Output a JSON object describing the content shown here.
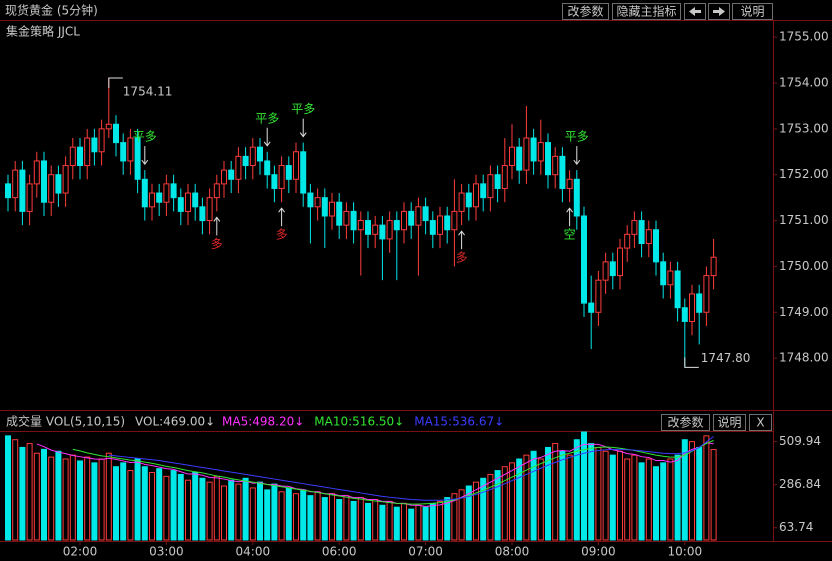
{
  "header": {
    "title": "现货黄金 (5分钟)",
    "buttons": [
      "改参数",
      "隐藏主指标",
      "说明"
    ]
  },
  "chart_data": [
    {
      "type": "candlestick",
      "title": "集金策略 JJCL",
      "up_color": "#ff3c3c",
      "down_color": "#00e8e8",
      "ylim": [
        1747,
        1755.33
      ],
      "yticks": [
        {
          "value": 1755,
          "label": "1755.00"
        },
        {
          "value": 1754,
          "label": "1754.00"
        },
        {
          "value": 1753,
          "label": "1753.00"
        },
        {
          "value": 1752,
          "label": "1752.00"
        },
        {
          "value": 1751,
          "label": "1751.00"
        },
        {
          "value": 1750,
          "label": "1750.00"
        },
        {
          "value": 1749,
          "label": "1749.00"
        },
        {
          "value": 1748,
          "label": "1748.00"
        }
      ],
      "candles": [
        [
          1751.8,
          1752.0,
          1751.2,
          1751.5
        ],
        [
          1751.5,
          1752.3,
          1751.2,
          1752.1
        ],
        [
          1752.1,
          1752.3,
          1750.9,
          1751.2
        ],
        [
          1751.2,
          1752.0,
          1750.9,
          1751.8
        ],
        [
          1751.8,
          1752.5,
          1751.5,
          1752.3
        ],
        [
          1752.3,
          1752.5,
          1751.1,
          1751.4
        ],
        [
          1751.4,
          1752.2,
          1751.1,
          1752.0
        ],
        [
          1752.0,
          1752.2,
          1751.3,
          1751.6
        ],
        [
          1751.6,
          1752.4,
          1751.3,
          1752.2
        ],
        [
          1752.2,
          1752.8,
          1751.9,
          1752.6
        ],
        [
          1752.6,
          1752.8,
          1751.9,
          1752.2
        ],
        [
          1752.2,
          1753.0,
          1751.9,
          1752.8
        ],
        [
          1752.8,
          1753.0,
          1752.2,
          1752.5
        ],
        [
          1752.5,
          1753.2,
          1752.2,
          1753.0
        ],
        [
          1753.0,
          1754.11,
          1752.8,
          1753.1
        ],
        [
          1753.1,
          1753.3,
          1752.4,
          1752.7
        ],
        [
          1752.7,
          1752.9,
          1752.0,
          1752.3
        ],
        [
          1752.3,
          1753.0,
          1752.0,
          1752.8
        ],
        [
          1752.8,
          1753.0,
          1751.6,
          1751.9
        ],
        [
          1751.9,
          1752.1,
          1751.0,
          1751.3
        ],
        [
          1751.3,
          1751.8,
          1751.0,
          1751.6
        ],
        [
          1751.6,
          1751.8,
          1751.1,
          1751.4
        ],
        [
          1751.4,
          1752.0,
          1751.1,
          1751.8
        ],
        [
          1751.8,
          1752.0,
          1751.2,
          1751.5
        ],
        [
          1751.5,
          1751.7,
          1750.9,
          1751.2
        ],
        [
          1751.2,
          1751.8,
          1750.9,
          1751.6
        ],
        [
          1751.6,
          1751.8,
          1751.0,
          1751.3
        ],
        [
          1751.3,
          1751.5,
          1750.7,
          1751.0
        ],
        [
          1751.0,
          1751.7,
          1750.7,
          1751.5
        ],
        [
          1751.5,
          1752.0,
          1751.2,
          1751.8
        ],
        [
          1751.8,
          1752.3,
          1751.5,
          1752.1
        ],
        [
          1752.1,
          1752.3,
          1751.6,
          1751.9
        ],
        [
          1751.9,
          1752.6,
          1751.6,
          1752.4
        ],
        [
          1752.4,
          1752.6,
          1751.9,
          1752.2
        ],
        [
          1752.2,
          1752.8,
          1751.9,
          1752.6
        ],
        [
          1752.6,
          1752.8,
          1752.0,
          1752.3
        ],
        [
          1752.3,
          1752.5,
          1751.7,
          1752.0
        ],
        [
          1752.0,
          1752.2,
          1751.4,
          1751.7
        ],
        [
          1751.7,
          1752.4,
          1751.4,
          1752.2
        ],
        [
          1752.2,
          1752.4,
          1751.6,
          1751.9
        ],
        [
          1751.9,
          1752.7,
          1751.6,
          1752.5
        ],
        [
          1752.5,
          1752.7,
          1751.3,
          1751.6
        ],
        [
          1751.6,
          1751.8,
          1750.5,
          1751.3
        ],
        [
          1751.3,
          1751.7,
          1751.0,
          1751.5
        ],
        [
          1751.5,
          1751.7,
          1750.4,
          1751.1
        ],
        [
          1751.1,
          1751.6,
          1750.8,
          1751.4
        ],
        [
          1751.4,
          1751.6,
          1750.6,
          1750.9
        ],
        [
          1750.9,
          1751.4,
          1750.6,
          1751.2
        ],
        [
          1751.2,
          1751.4,
          1750.5,
          1750.8
        ],
        [
          1750.8,
          1751.2,
          1749.8,
          1751.0
        ],
        [
          1751.0,
          1751.2,
          1750.4,
          1750.7
        ],
        [
          1750.7,
          1751.1,
          1750.4,
          1750.9
        ],
        [
          1750.9,
          1751.1,
          1749.7,
          1750.6
        ],
        [
          1750.6,
          1751.2,
          1750.3,
          1751.0
        ],
        [
          1751.0,
          1751.2,
          1749.7,
          1750.8
        ],
        [
          1750.8,
          1751.4,
          1750.5,
          1751.2
        ],
        [
          1751.2,
          1751.4,
          1750.6,
          1750.9
        ],
        [
          1750.9,
          1751.5,
          1749.8,
          1751.3
        ],
        [
          1751.3,
          1751.5,
          1750.7,
          1751.0
        ],
        [
          1751.0,
          1751.2,
          1750.4,
          1750.7
        ],
        [
          1750.7,
          1751.3,
          1750.4,
          1751.1
        ],
        [
          1751.1,
          1751.3,
          1750.5,
          1750.8
        ],
        [
          1750.8,
          1751.9,
          1750.0,
          1751.2
        ],
        [
          1751.2,
          1751.8,
          1750.9,
          1751.6
        ],
        [
          1751.6,
          1751.8,
          1751.0,
          1751.3
        ],
        [
          1751.3,
          1752.0,
          1751.0,
          1751.8
        ],
        [
          1751.8,
          1752.0,
          1751.2,
          1751.5
        ],
        [
          1751.5,
          1752.2,
          1751.2,
          1752.0
        ],
        [
          1752.0,
          1752.2,
          1751.4,
          1751.7
        ],
        [
          1751.7,
          1752.8,
          1751.4,
          1752.2
        ],
        [
          1752.2,
          1753.1,
          1751.9,
          1752.6
        ],
        [
          1752.6,
          1752.8,
          1751.8,
          1752.1
        ],
        [
          1752.1,
          1753.5,
          1751.8,
          1752.8
        ],
        [
          1752.8,
          1753.0,
          1752.0,
          1752.3
        ],
        [
          1752.3,
          1753.2,
          1752.0,
          1752.7
        ],
        [
          1752.7,
          1752.9,
          1751.7,
          1752.0
        ],
        [
          1752.0,
          1752.6,
          1751.7,
          1752.4
        ],
        [
          1752.4,
          1752.6,
          1751.4,
          1751.7
        ],
        [
          1751.7,
          1752.1,
          1751.4,
          1751.9
        ],
        [
          1751.9,
          1752.1,
          1750.8,
          1751.1
        ],
        [
          1751.1,
          1751.3,
          1748.9,
          1749.2
        ],
        [
          1749.2,
          1749.8,
          1748.2,
          1749.0
        ],
        [
          1749.0,
          1749.9,
          1748.7,
          1749.7
        ],
        [
          1749.7,
          1750.3,
          1749.4,
          1750.1
        ],
        [
          1750.1,
          1750.3,
          1749.5,
          1749.8
        ],
        [
          1749.8,
          1750.6,
          1749.5,
          1750.4
        ],
        [
          1750.4,
          1750.9,
          1750.1,
          1750.7
        ],
        [
          1750.7,
          1751.2,
          1750.4,
          1751.0
        ],
        [
          1751.0,
          1751.2,
          1750.2,
          1750.5
        ],
        [
          1750.5,
          1751.0,
          1750.2,
          1750.8
        ],
        [
          1750.8,
          1751.0,
          1749.8,
          1750.1
        ],
        [
          1750.1,
          1750.3,
          1749.3,
          1749.6
        ],
        [
          1749.6,
          1750.1,
          1749.3,
          1749.9
        ],
        [
          1749.9,
          1750.1,
          1748.8,
          1749.1
        ],
        [
          1749.1,
          1749.3,
          1747.8,
          1748.8
        ],
        [
          1748.8,
          1749.6,
          1748.5,
          1749.4
        ],
        [
          1749.4,
          1749.6,
          1748.3,
          1749.0
        ],
        [
          1749.0,
          1750.0,
          1748.7,
          1749.8
        ],
        [
          1749.8,
          1750.6,
          1749.5,
          1750.2
        ]
      ],
      "high_label": "1754.11",
      "high_index": 14,
      "low_label": "1747.80",
      "low_index": 94,
      "annotations": [
        {
          "text": "平多",
          "index": 19,
          "side": "above",
          "color": "#32e632"
        },
        {
          "text": "多",
          "index": 29,
          "side": "below",
          "color": "#e02828"
        },
        {
          "text": "平多",
          "index": 36,
          "side": "above",
          "color": "#32e632"
        },
        {
          "text": "多",
          "index": 38,
          "side": "below",
          "color": "#e02828"
        },
        {
          "text": "平多",
          "index": 41,
          "side": "above",
          "color": "#32e632"
        },
        {
          "text": "多",
          "index": 63,
          "side": "below",
          "color": "#e02828"
        },
        {
          "text": "空",
          "index": 78,
          "side": "below",
          "color": "#32e632"
        },
        {
          "text": "平多",
          "index": 79,
          "side": "above",
          "color": "#32e632"
        }
      ]
    },
    {
      "type": "volume",
      "title": "成交量 VOL(5,10,15)",
      "value_label": "VOL:469.00↓",
      "buttons": [
        "改参数",
        "说明",
        "X"
      ],
      "ylim": [
        0,
        560
      ],
      "yticks": [
        63.74,
        286.84,
        509.94
      ],
      "values": [
        540,
        520,
        480,
        500,
        450,
        470,
        430,
        460,
        420,
        440,
        410,
        430,
        400,
        420,
        450,
        380,
        400,
        360,
        420,
        380,
        350,
        370,
        330,
        360,
        340,
        310,
        350,
        320,
        300,
        330,
        280,
        310,
        290,
        320,
        270,
        300,
        260,
        290,
        250,
        270,
        240,
        260,
        230,
        250,
        220,
        240,
        210,
        230,
        200,
        220,
        190,
        210,
        180,
        200,
        170,
        190,
        160,
        180,
        170,
        190,
        200,
        220,
        240,
        260,
        280,
        300,
        320,
        340,
        360,
        380,
        400,
        420,
        440,
        460,
        420,
        480,
        500,
        460,
        440,
        520,
        560,
        500,
        480,
        460,
        440,
        460,
        420,
        440,
        400,
        420,
        380,
        400,
        420,
        440,
        520,
        510,
        480,
        540,
        469
      ],
      "series": [
        {
          "name": "MA5:498.20↓",
          "color": "#ff32ff",
          "values": [
            null,
            null,
            null,
            null,
            498,
            484,
            466,
            456,
            448,
            438,
            432,
            426,
            420,
            418,
            424,
            418,
            410,
            402,
            404,
            392,
            386,
            378,
            370,
            366,
            354,
            342,
            342,
            336,
            324,
            322,
            316,
            308,
            302,
            306,
            294,
            298,
            288,
            288,
            280,
            278,
            266,
            262,
            250,
            250,
            240,
            240,
            230,
            230,
            220,
            220,
            210,
            210,
            200,
            200,
            190,
            190,
            180,
            180,
            174,
            178,
            182,
            192,
            204,
            222,
            240,
            260,
            280,
            300,
            320,
            340,
            360,
            380,
            400,
            420,
            428,
            444,
            460,
            464,
            460,
            480,
            496,
            496,
            496,
            484,
            468,
            460,
            448,
            444,
            432,
            428,
            412,
            412,
            404,
            412,
            450,
            470,
            480,
            505,
            498.2
          ]
        },
        {
          "name": "MA10:516.50↓",
          "color": "#32e632",
          "values": [
            null,
            null,
            null,
            null,
            null,
            null,
            null,
            null,
            null,
            470,
            462,
            452,
            444,
            436,
            432,
            426,
            420,
            414,
            410,
            404,
            398,
            390,
            382,
            376,
            368,
            360,
            354,
            348,
            340,
            332,
            326,
            318,
            312,
            306,
            300,
            294,
            288,
            282,
            276,
            270,
            264,
            258,
            252,
            246,
            240,
            234,
            228,
            222,
            216,
            212,
            206,
            202,
            198,
            194,
            190,
            188,
            186,
            186,
            188,
            190,
            194,
            200,
            208,
            218,
            230,
            244,
            258,
            274,
            290,
            308,
            326,
            344,
            362,
            380,
            396,
            412,
            426,
            440,
            450,
            460,
            468,
            476,
            480,
            482,
            480,
            476,
            470,
            464,
            456,
            448,
            440,
            434,
            430,
            430,
            440,
            460,
            480,
            500,
            516.5
          ]
        },
        {
          "name": "MA15:536.67↓",
          "color": "#3c3cff",
          "values": [
            null,
            null,
            null,
            null,
            null,
            null,
            null,
            null,
            null,
            null,
            null,
            null,
            null,
            null,
            440,
            436,
            432,
            428,
            424,
            420,
            416,
            412,
            406,
            400,
            394,
            388,
            382,
            376,
            370,
            364,
            358,
            352,
            346,
            340,
            334,
            328,
            322,
            316,
            310,
            304,
            298,
            292,
            286,
            280,
            274,
            268,
            262,
            256,
            250,
            244,
            238,
            232,
            226,
            222,
            218,
            214,
            210,
            208,
            206,
            206,
            206,
            208,
            212,
            218,
            226,
            236,
            248,
            262,
            276,
            292,
            308,
            324,
            340,
            356,
            372,
            388,
            402,
            416,
            428,
            440,
            450,
            458,
            464,
            468,
            470,
            470,
            468,
            466,
            462,
            458,
            454,
            450,
            448,
            448,
            452,
            462,
            480,
            508,
            536.67
          ]
        }
      ],
      "x_labels": [
        {
          "index": 10,
          "label": "02:00"
        },
        {
          "index": 22,
          "label": "03:00"
        },
        {
          "index": 34,
          "label": "04:00"
        },
        {
          "index": 46,
          "label": "06:00"
        },
        {
          "index": 58,
          "label": "07:00"
        },
        {
          "index": 70,
          "label": "08:00"
        },
        {
          "index": 82,
          "label": "09:00"
        },
        {
          "index": 94,
          "label": "10:00"
        }
      ]
    }
  ]
}
